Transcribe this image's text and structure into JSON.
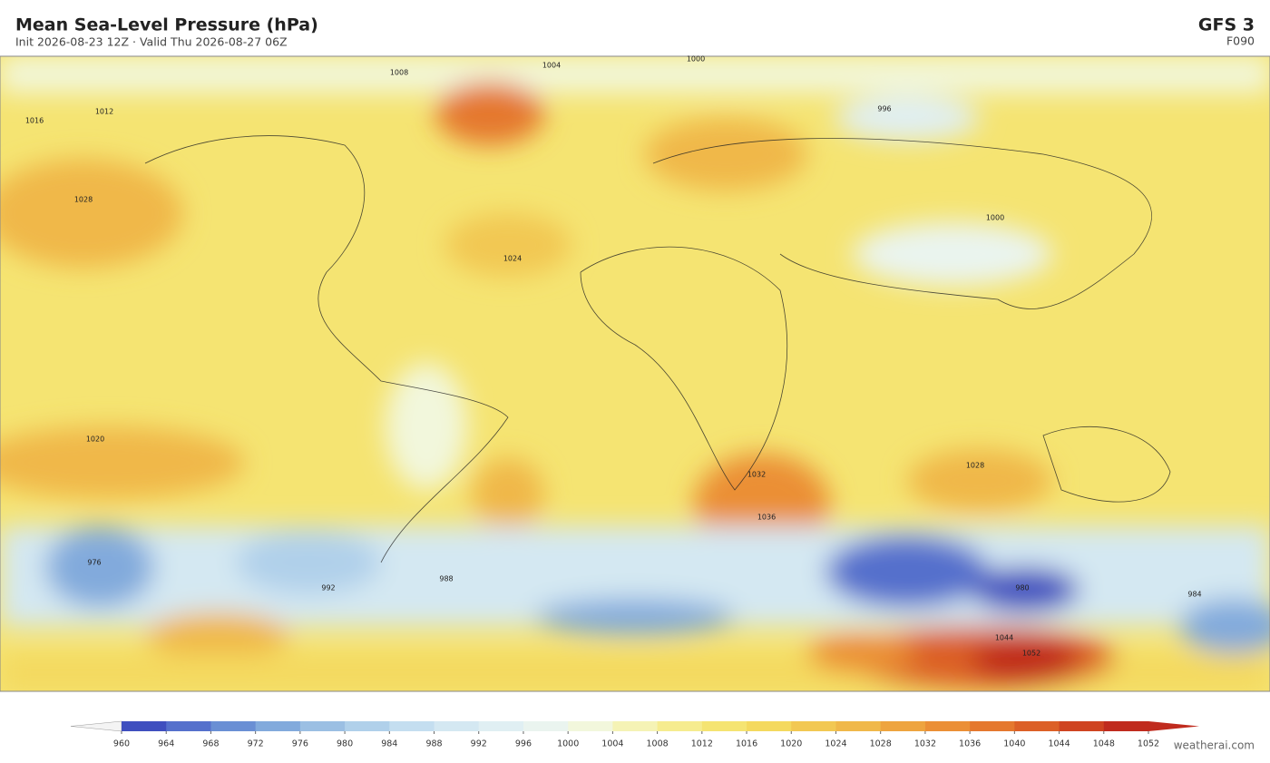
{
  "header": {
    "title": "Mean Sea-Level Pressure  (hPa)",
    "subtitle": "Init 2026-08-23 12Z  ·  Valid Thu 2026-08-27 06Z",
    "model": "GFS  3",
    "forecast_hour": "F090"
  },
  "colorbar": {
    "ticks": [
      960,
      964,
      968,
      972,
      976,
      980,
      984,
      988,
      992,
      996,
      1000,
      1004,
      1008,
      1012,
      1016,
      1020,
      1024,
      1028,
      1032,
      1036,
      1040,
      1044,
      1048,
      1052
    ],
    "colors": [
      "#3f4fbf",
      "#5570cc",
      "#6a8fd4",
      "#82aadc",
      "#9bbfe3",
      "#b0d0ea",
      "#c4def0",
      "#d4e8f2",
      "#e0eff3",
      "#eaf4ef",
      "#f2f7dc",
      "#f5f3b5",
      "#f6ec8f",
      "#f5e472",
      "#f4d95f",
      "#f2c853",
      "#f0b84a",
      "#eea43f",
      "#eb8f36",
      "#e5782e",
      "#dc6027",
      "#cf4421",
      "#c02b1e"
    ]
  },
  "contour_labels": [
    1028,
    1024,
    1036,
    976,
    980,
    1044,
    1052,
    996,
    1000,
    1012,
    1016,
    1020,
    1008,
    1004,
    1000,
    988,
    992,
    984,
    1028,
    1032
  ],
  "credit": "weatherai.com"
}
